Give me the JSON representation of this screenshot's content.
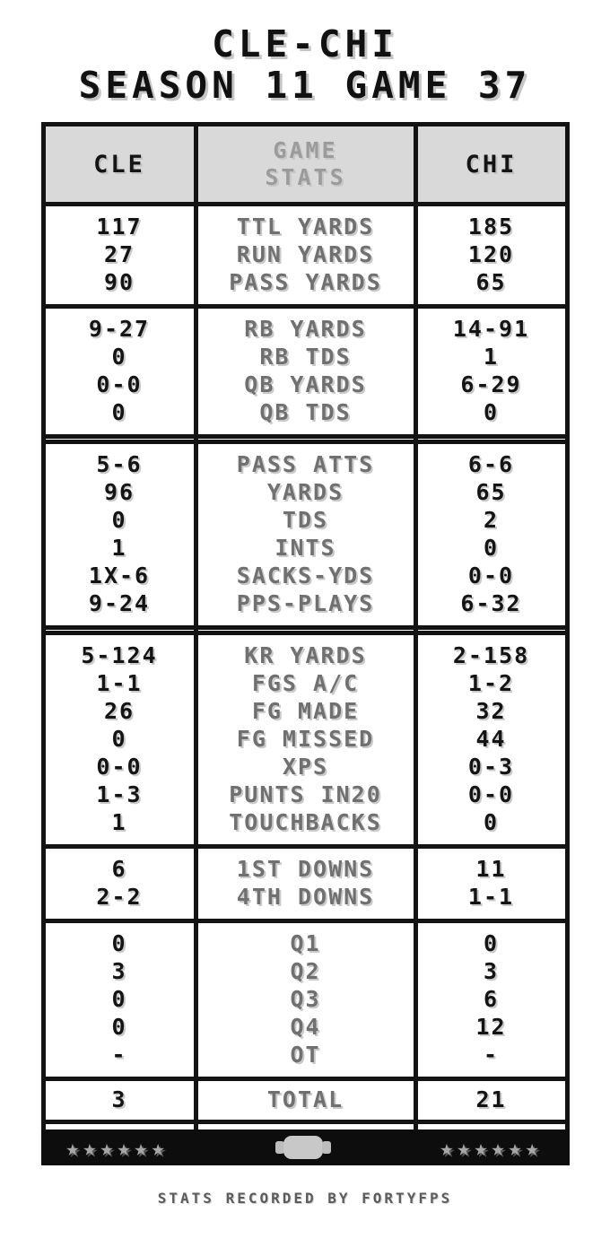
{
  "title": {
    "line1": "CLE-CHI",
    "line2": "SEASON 11 GAME 37"
  },
  "header": {
    "left_team": "CLE",
    "center": [
      "GAME",
      "STATS"
    ],
    "right_team": "CHI"
  },
  "sections": [
    {
      "cle": [
        "117",
        "27",
        "90"
      ],
      "labels": [
        "TTL YARDS",
        "RUN YARDS",
        "PASS YARDS"
      ],
      "chi": [
        "185",
        "120",
        "65"
      ]
    },
    {
      "cle": [
        "9-27",
        "0",
        "0-0",
        "0"
      ],
      "labels": [
        "RB YARDS",
        "RB TDS",
        "QB YARDS",
        "QB TDS"
      ],
      "chi": [
        "14-91",
        "1",
        "6-29",
        "0"
      ]
    },
    {
      "cle": [
        "5-6",
        "96",
        "0",
        "1",
        "1X-6",
        "9-24"
      ],
      "labels": [
        "PASS ATTS",
        "YARDS",
        "TDS",
        "INTS",
        "SACKS-YDS",
        "PPS-PLAYS"
      ],
      "chi": [
        "6-6",
        "65",
        "2",
        "0",
        "0-0",
        "6-32"
      ]
    },
    {
      "cle": [
        "5-124",
        "1-1",
        "26",
        "0",
        "0-0",
        "1-3",
        "1"
      ],
      "labels": [
        "KR YARDS",
        "FGS A/C",
        "FG MADE",
        "FG MISSED",
        "XPS",
        "PUNTS IN20",
        "TOUCHBACKS"
      ],
      "chi": [
        "2-158",
        "1-2",
        "32",
        "44",
        "0-3",
        "0-0",
        "0"
      ]
    },
    {
      "cle": [
        "6",
        "2-2"
      ],
      "labels": [
        "1ST DOWNS",
        "4TH DOWNS"
      ],
      "chi": [
        "11",
        "1-1"
      ]
    },
    {
      "cle": [
        "0",
        "3",
        "0",
        "0",
        "-"
      ],
      "labels": [
        "Q1",
        "Q2",
        "Q3",
        "Q4",
        "OT"
      ],
      "chi": [
        "0",
        "3",
        "6",
        "12",
        "-"
      ]
    }
  ],
  "total": {
    "cle": "3",
    "label": "TOTAL",
    "chi": "21"
  },
  "footer": {
    "stars_left": "★★★★★★",
    "stars_right": "★★★★★★",
    "credit": "STATS RECORDED BY FORTYFPS"
  },
  "colors": {
    "border": "#131313",
    "header_bg": "#d9d9d9",
    "center_header_text": "#9b9b9b",
    "label_text": "#707070",
    "value_text": "#141414",
    "footer_bar_bg": "#0d0d0d",
    "star": "#a6a6a6",
    "football": "#c8c8c8"
  }
}
